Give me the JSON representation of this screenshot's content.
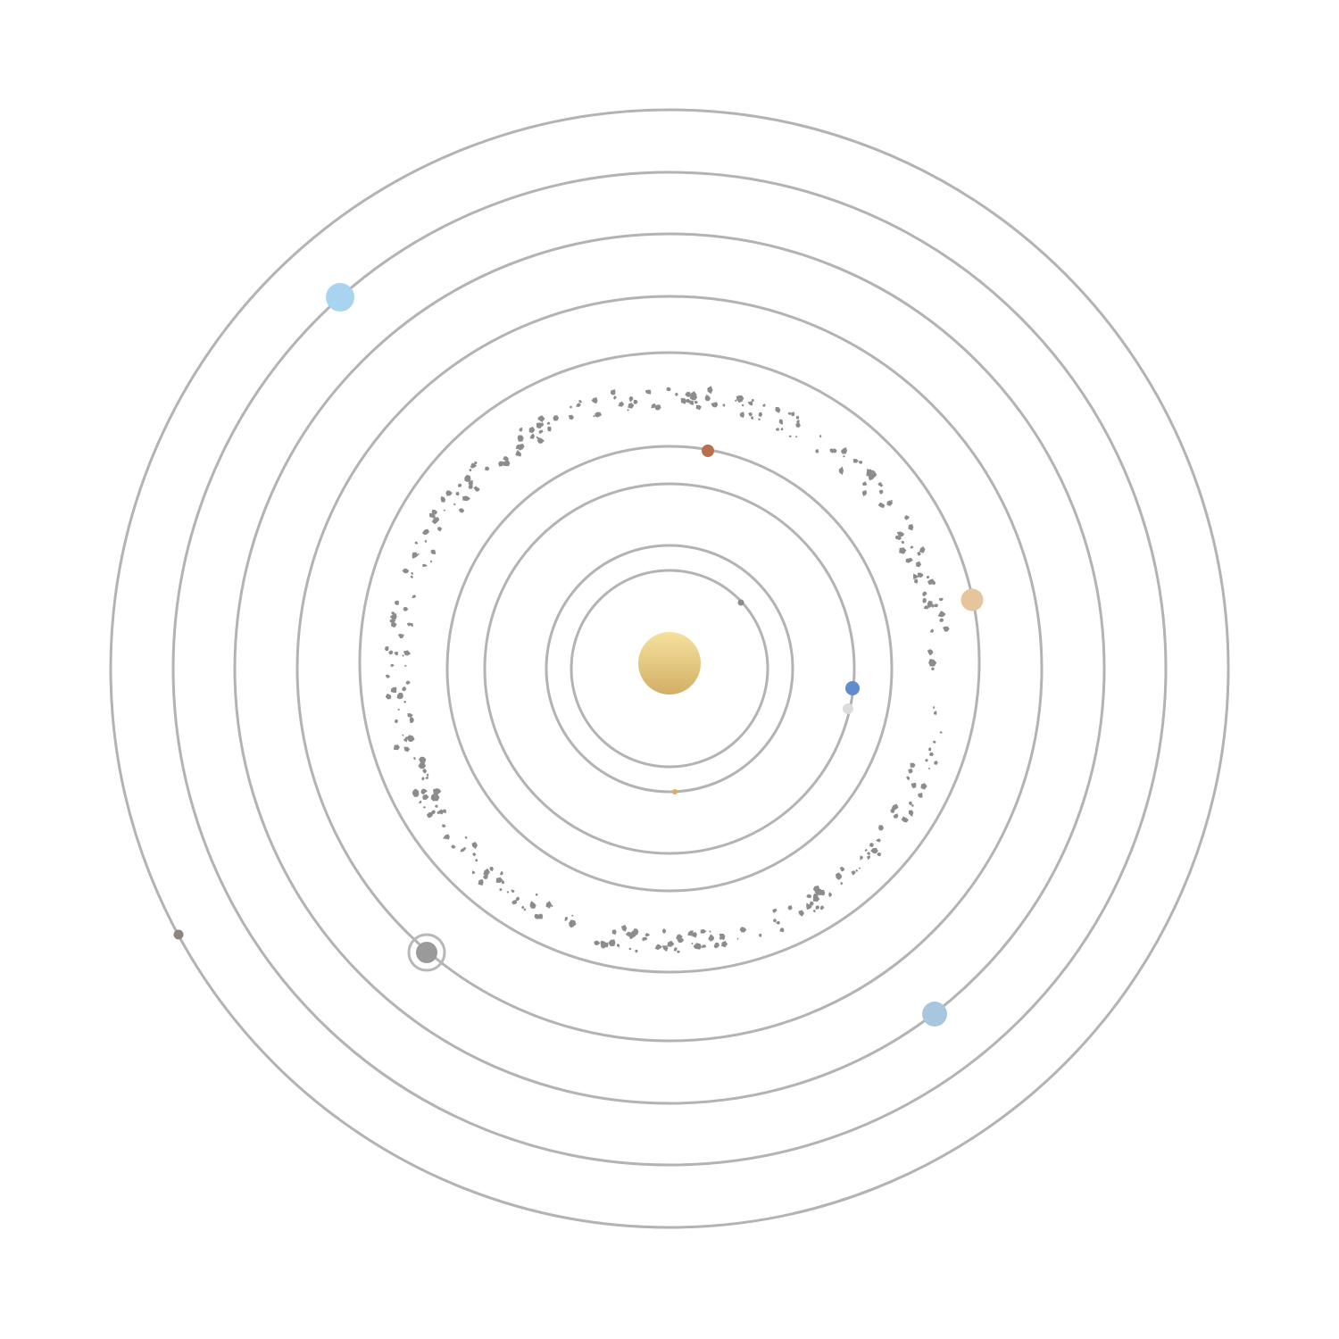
{
  "diagram": {
    "type": "solar-system-orbits",
    "background": "#ffffff",
    "orbit_color": "#b3b3b3",
    "asteroid_color": "#8c8c8c",
    "sun": {
      "name": "sun",
      "gradient": [
        "#f5e29c",
        "#d2af66"
      ]
    },
    "bodies": [
      {
        "name": "mercury",
        "color": "#8c8c8c"
      },
      {
        "name": "venus",
        "color": "#e2aa62"
      },
      {
        "name": "earth",
        "color": "#5f8ccf"
      },
      {
        "name": "moon",
        "color": "#dcdcdc"
      },
      {
        "name": "mars",
        "color": "#b8704c"
      },
      {
        "name": "jupiter",
        "color": "#e6c59c"
      },
      {
        "name": "saturn",
        "color": "#9a9a9a",
        "has_ring": true
      },
      {
        "name": "uranus",
        "color": "#a9d4ef"
      },
      {
        "name": "neptune",
        "color": "#a9c6df"
      },
      {
        "name": "pluto",
        "color": "#8f8580"
      }
    ],
    "orbit_count": 9,
    "asteroid_belt": true
  }
}
